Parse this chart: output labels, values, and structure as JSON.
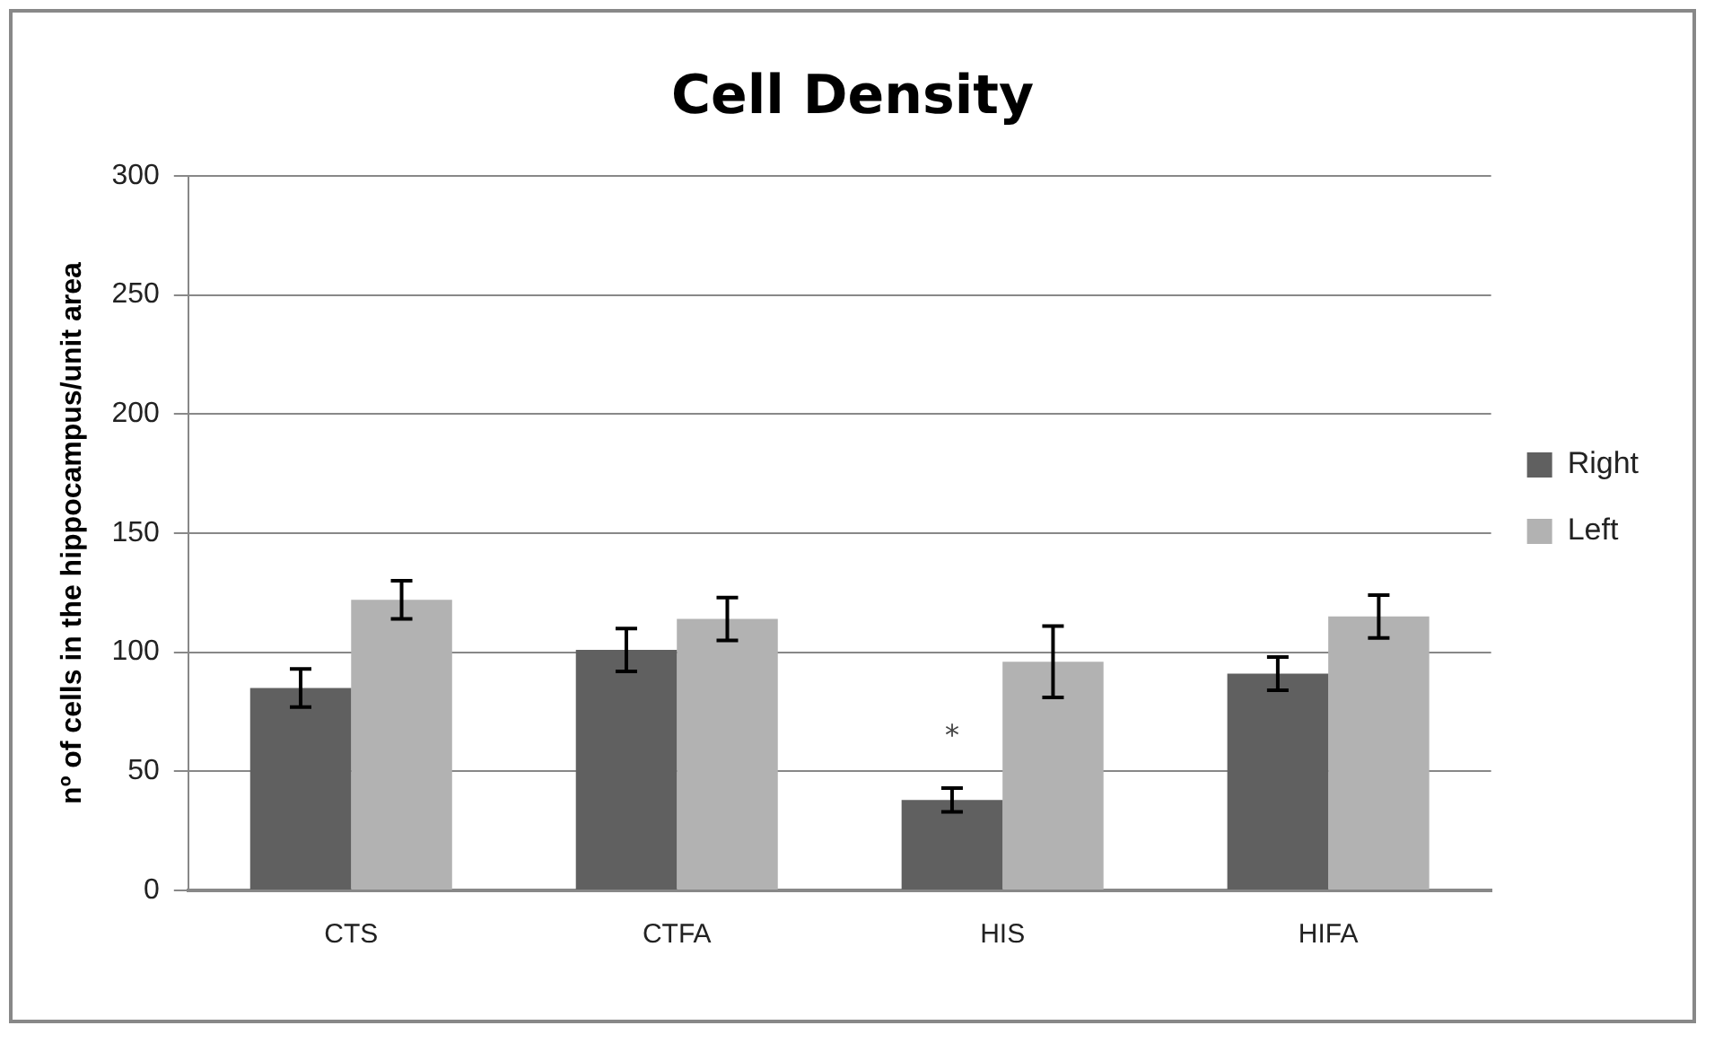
{
  "chart_data": {
    "type": "bar",
    "title": "Cell Density",
    "ylabel": "nº of cells in the hippocampus/unit area",
    "categories": [
      "CTS",
      "CTFA",
      "HIS",
      "HIFA"
    ],
    "series": [
      {
        "name": "Right",
        "color": "#606060",
        "values": [
          85,
          101,
          38,
          91
        ],
        "errors": [
          8,
          9,
          5,
          7
        ]
      },
      {
        "name": "Left",
        "color": "#b2b2b2",
        "values": [
          122,
          114,
          96,
          115
        ],
        "errors": [
          8,
          9,
          15,
          9
        ]
      }
    ],
    "ylim": [
      0,
      300
    ],
    "yticks": [
      0,
      50,
      100,
      150,
      200,
      250,
      300
    ],
    "grid": "y",
    "legend": "right",
    "annotations": [
      {
        "text": "*",
        "x": "HIS",
        "y": 64
      }
    ]
  }
}
